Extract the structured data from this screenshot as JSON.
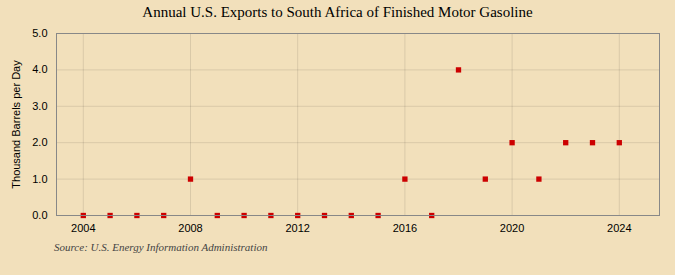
{
  "chart_data": {
    "type": "scatter",
    "title": "Annual U.S. Exports to South Africa of Finished Motor Gasoline",
    "ylabel": "Thousand Barrels per Day",
    "source": "Source: U.S. Energy Information Administration",
    "x": [
      2004,
      2005,
      2006,
      2007,
      2008,
      2009,
      2010,
      2011,
      2012,
      2013,
      2014,
      2015,
      2016,
      2017,
      2018,
      2019,
      2020,
      2021,
      2022,
      2023,
      2024
    ],
    "values": [
      0.0,
      0.0,
      0.0,
      0.0,
      1.0,
      0.0,
      0.0,
      0.0,
      0.0,
      0.0,
      0.0,
      0.0,
      1.0,
      0.0,
      4.0,
      1.0,
      2.0,
      1.0,
      2.0,
      2.0,
      2.0
    ],
    "color": "#cc0000",
    "marker": "square",
    "xlim": [
      2003.0,
      2025.5
    ],
    "xticks": [
      2004,
      2008,
      2012,
      2016,
      2020,
      2024
    ],
    "ylim": [
      0.0,
      5.0
    ],
    "yticks": [
      {
        "value": 0.0,
        "label": "0.0"
      },
      {
        "value": 1.0,
        "label": "1.0"
      },
      {
        "value": 2.0,
        "label": "2.0"
      },
      {
        "value": 3.0,
        "label": "3.0"
      },
      {
        "value": 4.0,
        "label": "4.0"
      },
      {
        "value": 5.0,
        "label": "5.0"
      }
    ],
    "grid": true
  }
}
